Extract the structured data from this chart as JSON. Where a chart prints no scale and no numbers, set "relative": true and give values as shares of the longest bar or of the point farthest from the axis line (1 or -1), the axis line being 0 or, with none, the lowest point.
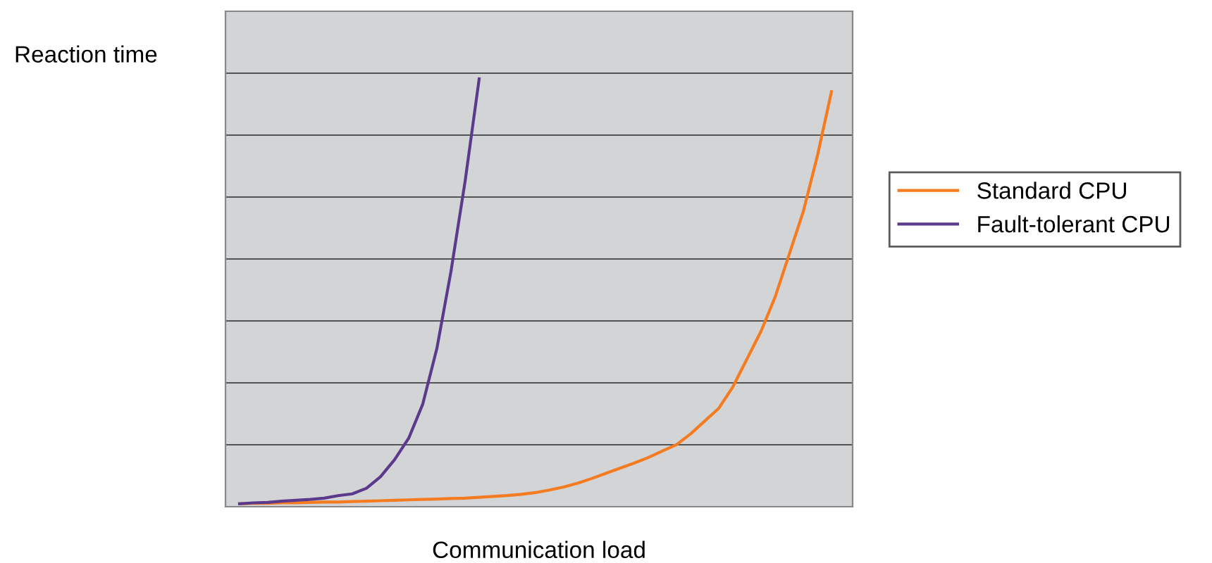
{
  "chart_data": {
    "type": "line",
    "relative": true,
    "xlabel": "Communication load",
    "ylabel": "Reaction time",
    "categories": [
      null,
      null,
      null,
      null,
      null,
      null,
      null,
      null,
      null,
      null,
      null,
      null,
      null,
      null,
      null,
      null,
      null,
      null,
      null,
      null,
      null,
      null,
      null,
      null,
      null,
      null,
      null,
      null,
      null,
      null,
      null,
      null,
      null,
      null,
      null,
      null,
      null,
      null,
      null,
      null,
      null,
      null,
      null,
      null,
      null
    ],
    "series": [
      {
        "name": "Standard CPU",
        "color": "#f47b20",
        "values": [
          null,
          0.007,
          0.008,
          0.008,
          0.009,
          0.009,
          0.01,
          0.011,
          0.011,
          0.012,
          0.013,
          0.014,
          0.015,
          0.016,
          0.017,
          0.018,
          0.019,
          0.02,
          0.022,
          0.024,
          0.026,
          0.029,
          0.033,
          0.039,
          0.046,
          0.055,
          0.066,
          0.078,
          0.09,
          0.102,
          0.115,
          0.13,
          0.145,
          0.17,
          0.2,
          0.23,
          0.28,
          0.345,
          0.41,
          0.49,
          0.59,
          0.69,
          0.82,
          0.97,
          null
        ]
      },
      {
        "name": "Fault-tolerant CPU",
        "color": "#5b3a8c",
        "values": [
          null,
          0.007,
          0.009,
          0.01,
          0.013,
          0.015,
          0.017,
          0.02,
          0.026,
          0.03,
          0.043,
          0.07,
          0.11,
          0.16,
          0.24,
          0.37,
          0.55,
          0.76,
          1.0,
          null,
          null,
          null,
          null,
          null,
          null,
          null,
          null,
          null,
          null,
          null,
          null,
          null,
          null,
          null,
          null,
          null,
          null,
          null,
          null,
          null,
          null,
          null,
          null,
          null,
          null
        ]
      }
    ],
    "grid": "y",
    "legend": "right",
    "marker": "none",
    "line_style": "solid"
  }
}
